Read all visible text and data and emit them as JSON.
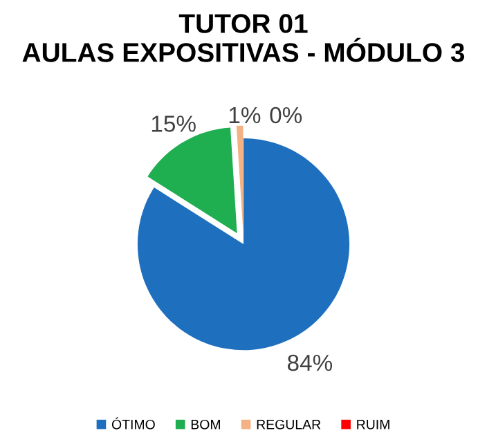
{
  "chart_data": {
    "type": "pie",
    "title": "TUTOR 01\nAULAS EXPOSITIVAS - MÓDULO 3",
    "categories": [
      "ÓTIMO",
      "BOM",
      "REGULAR",
      "RUIM"
    ],
    "values": [
      84,
      15,
      1,
      0
    ],
    "colors": [
      "#1f6fbf",
      "#1fae50",
      "#f4b183",
      "#ff0000"
    ],
    "value_labels": [
      "84%",
      "15%",
      "1%",
      "0%"
    ],
    "legend": "bottom"
  }
}
